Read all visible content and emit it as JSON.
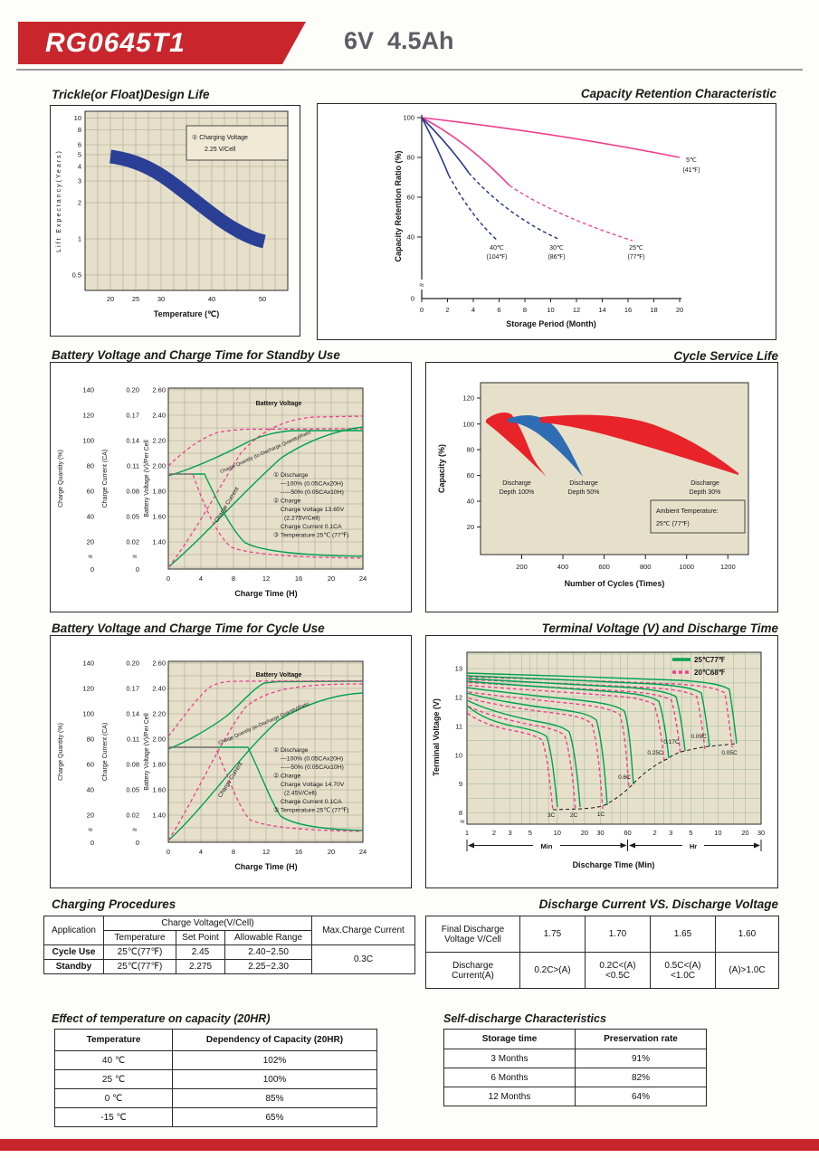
{
  "header": {
    "model": "RG0645T1",
    "spec": "6V  4.5Ah"
  },
  "colors": {
    "brand_red": "#c9252c",
    "chart_green": "#00a150",
    "chart_pink": "#ef3d8f",
    "chart_blue": "#2b3990",
    "plot_beige": "#e6e0cb",
    "region_red": "#e8232a",
    "region_blue": "#2e6db4"
  },
  "charts": {
    "design_life": {
      "title": "Trickle(or Float)Design Life",
      "y_label": "Lift Expectancy(Years)",
      "x_label": "Temperature (℃)",
      "y_ticks": [
        "10",
        "8",
        "6",
        "5",
        "4",
        "3",
        "2",
        "1",
        "0.5"
      ],
      "x_ticks": [
        "20",
        "25",
        "30",
        "40",
        "50"
      ],
      "annotation_line1": "① Charging Voltage",
      "annotation_line2": "2.25 V/Cell"
    },
    "capacity_retention": {
      "title": "Capacity Retention Characteristic",
      "y_label": "Capacity Retention Ratio (%)",
      "x_label": "Storage Period (Month)",
      "y_ticks": [
        "100",
        "80",
        "60",
        "40",
        "0"
      ],
      "x_ticks": [
        "0",
        "2",
        "4",
        "6",
        "8",
        "10",
        "12",
        "14",
        "16",
        "18",
        "20"
      ],
      "lab_40_1": "40℃",
      "lab_40_2": "(104℉)",
      "lab_30_1": "30℃",
      "lab_30_2": "(86℉)",
      "lab_25_1": "25℃",
      "lab_25_2": "(77℉)",
      "lab_5_1": "5℃",
      "lab_5_2": "(41℉)"
    },
    "standby": {
      "title": "Battery Voltage and Charge Time for Standby Use",
      "cq_label": "Charge Quantity (%)",
      "cc_label": "Charge Current (CA)",
      "bv_label": "Battery Voltage (V)/Per Cell",
      "x_label": "Charge Time (H)",
      "cq_ticks": [
        "140",
        "120",
        "100",
        "80",
        "60",
        "40",
        "20"
      ],
      "cc_ticks": [
        "0.20",
        "0.17",
        "0.14",
        "0.11",
        "0.08",
        "0.05",
        "0.02"
      ],
      "bv_ticks": [
        "2.60",
        "2.40",
        "2.20",
        "2.00",
        "1.80",
        "1.60",
        "1.40"
      ],
      "zero": "0",
      "x_ticks": [
        "0",
        "4",
        "8",
        "12",
        "16",
        "20",
        "24"
      ],
      "curve_bv": "Battery Voltage",
      "curve_cq": "Charge Quantity (to-Discharge Quantity)Ratio",
      "curve_cc": "Charge Current",
      "notes": [
        "① Discharge",
        "—100% (0.05CAx20H)",
        "-----50% (0.05CAx10H)",
        "② Charge",
        "Charge Voltage 13.65V",
        "(2.275V/Cell)",
        "Charge Current 0.1CA",
        "③ Temperature 25℃ (77℉)"
      ]
    },
    "cycle_life": {
      "title": "Cycle Service Life",
      "y_label": "Capacity (%)",
      "x_label": "Number of Cycles (Times)",
      "y_ticks": [
        "120",
        "100",
        "80",
        "60",
        "40",
        "20"
      ],
      "x_ticks": [
        "200",
        "400",
        "600",
        "800",
        "1000",
        "1200"
      ],
      "d100_1": "Discharge",
      "d100_2": "Depth 100%",
      "d50_1": "Discharge",
      "d50_2": "Depth 50%",
      "d30_1": "Discharge",
      "d30_2": "Depth 30%",
      "amb_1": "Ambient Temperature:",
      "amb_2": "25℃ (77℉)"
    },
    "cycle_charge": {
      "title": "Battery Voltage and Charge Time for Cycle Use",
      "cq_label": "Charge Quantity (%)",
      "cc_label": "Charge Current (CA)",
      "bv_label": "Battery Voltage (V)/Per Cell",
      "x_label": "Charge Time (H)",
      "cq_ticks": [
        "140",
        "120",
        "100",
        "80",
        "60",
        "40",
        "20"
      ],
      "cc_ticks": [
        "0.20",
        "0.17",
        "0.14",
        "0.11",
        "0.08",
        "0.05",
        "0.02"
      ],
      "bv_ticks": [
        "2.60",
        "2.40",
        "2.20",
        "2.00",
        "1.80",
        "1.60",
        "1.40"
      ],
      "zero": "0",
      "x_ticks": [
        "0",
        "4",
        "8",
        "12",
        "16",
        "20",
        "24"
      ],
      "curve_bv": "Battery Voltage",
      "curve_cq": "Charge Quantity (to-Discharge Quantity)Ratio",
      "curve_cc": "Charge Current",
      "notes": [
        "① Discharge",
        "—100% (0.05CAx20H)",
        "-----50% (0.05CAx10H)",
        "② Charge",
        "Charge Voltage 14.70V",
        "(2.45V/Cell)",
        "Charge Current 0.1CA",
        "③ Temperature 25℃ (77℉)"
      ]
    },
    "terminal": {
      "title": "Terminal Voltage (V) and Discharge Time",
      "y_label": "Terminal Voltage (V)",
      "x_label": "Discharge Time (Min)",
      "y_ticks": [
        "13",
        "12",
        "11",
        "10",
        "9",
        "8"
      ],
      "x_ticks_min": [
        "1",
        "2",
        "3",
        "5",
        "10",
        "20",
        "30",
        "60"
      ],
      "x_ticks_hr": [
        "2",
        "3",
        "5",
        "10",
        "20",
        "30"
      ],
      "min_label": "Min",
      "hr_label": "Hr",
      "legend_25": "25℃77℉",
      "legend_20": "20℃68℉",
      "rate_labels": [
        "3C",
        "2C",
        "1C",
        "0.6C",
        "0.25C",
        "0.17C",
        "0.09C",
        "0.05C"
      ]
    }
  },
  "tables": {
    "charging": {
      "title": "Charging Procedures",
      "application": "Application",
      "charge_voltage": "Charge Voltage(V/Cell)",
      "temperature": "Temperature",
      "set_point": "Set Point",
      "allowable_range": "Allowable Range",
      "max_charge_current": "Max.Charge Current",
      "rows": [
        {
          "app": "Cycle Use",
          "temp": "25℃(77℉)",
          "set": "2.45",
          "range": "2.40~2.50"
        },
        {
          "app": "Standby",
          "temp": "25℃(77℉)",
          "set": "2.275",
          "range": "2.25~2.30"
        }
      ],
      "max_current_value": "0.3C"
    },
    "discharge": {
      "title": "Discharge Current VS. Discharge Voltage",
      "row1_label_a": "Final Discharge",
      "row1_label_b": "Voltage V/Cell",
      "row1_values": [
        "1.75",
        "1.70",
        "1.65",
        "1.60"
      ],
      "row2_label_a": "Discharge",
      "row2_label_b": "Current(A)",
      "row2_values": [
        "0.2C>(A)",
        "0.2C<(A)<0.5C",
        "0.5C<(A)<1.0C",
        "(A)>1.0C"
      ]
    },
    "temp_effect": {
      "title": "Effect of temperature on capacity (20HR)",
      "col1": "Temperature",
      "col2": "Dependency of Capacity (20HR)",
      "rows": [
        [
          "40 ℃",
          "102%"
        ],
        [
          "25 ℃",
          "100%"
        ],
        [
          "0 ℃",
          "85%"
        ],
        [
          "-15 ℃",
          "65%"
        ]
      ]
    },
    "self_discharge": {
      "title": "Self-discharge Characteristics",
      "col1": "Storage time",
      "col2": "Preservation rate",
      "rows": [
        [
          "3 Months",
          "91%"
        ],
        [
          "6 Months",
          "82%"
        ],
        [
          "12 Months",
          "64%"
        ]
      ]
    }
  },
  "chart_data": [
    {
      "type": "line",
      "title": "Trickle(or Float)Design Life",
      "xlabel": "Temperature (℃)",
      "ylabel": "Lift Expectancy(Years)",
      "y_scale": "log",
      "xlim": [
        15,
        55
      ],
      "ylim": [
        0.4,
        11
      ],
      "series": [
        {
          "name": "Charging Voltage 2.25V/Cell",
          "x": [
            20,
            25,
            30,
            35,
            40,
            45,
            50
          ],
          "values": [
            5,
            4.5,
            3.4,
            2.3,
            1.6,
            1.2,
            0.95
          ]
        }
      ]
    },
    {
      "type": "line",
      "title": "Capacity Retention Characteristic",
      "xlabel": "Storage Period (Month)",
      "ylabel": "Capacity Retention Ratio (%)",
      "xlim": [
        0,
        20
      ],
      "ylim": [
        0,
        100
      ],
      "series": [
        {
          "name": "5℃(41℉)",
          "x": [
            0,
            5,
            10,
            15,
            20
          ],
          "values": [
            100,
            95,
            90,
            85,
            80
          ]
        },
        {
          "name": "25℃(77℉)",
          "x": [
            0,
            4,
            8,
            12,
            16
          ],
          "values": [
            100,
            86,
            70,
            57,
            48
          ]
        },
        {
          "name": "30℃(86℉)",
          "x": [
            0,
            3,
            6,
            9,
            10.5
          ],
          "values": [
            100,
            84,
            66,
            52,
            47
          ]
        },
        {
          "name": "40℃(104℉)",
          "x": [
            0,
            2,
            4,
            5.5
          ],
          "values": [
            100,
            80,
            58,
            47
          ]
        }
      ]
    },
    {
      "type": "line",
      "title": "Battery Voltage and Charge Time for Standby Use",
      "xlabel": "Charge Time (H)",
      "note": "Charge 2.275V/Cell (13.65V), 0.1CA, 25℃(77℉)",
      "series": [
        {
          "name": "Battery Voltage 100% discharge (V/cell)",
          "x": [
            0,
            4,
            8,
            12,
            16,
            24
          ],
          "values": [
            1.92,
            2.05,
            2.2,
            2.26,
            2.28,
            2.28
          ]
        },
        {
          "name": "Battery Voltage 50% discharge (V/cell)",
          "x": [
            0,
            2,
            4,
            6,
            24
          ],
          "values": [
            2.0,
            2.15,
            2.26,
            2.29,
            2.3
          ]
        },
        {
          "name": "Charge Quantity 100% (%)",
          "x": [
            0,
            4,
            8,
            12,
            16,
            20,
            24
          ],
          "values": [
            0,
            30,
            62,
            88,
            102,
            107,
            110
          ]
        },
        {
          "name": "Charge Quantity 50% (%)",
          "x": [
            0,
            4,
            8,
            12,
            24
          ],
          "values": [
            0,
            58,
            103,
            116,
            119
          ]
        },
        {
          "name": "Charge Current 100% (CA)",
          "x": [
            0,
            5,
            8,
            12,
            16,
            24
          ],
          "values": [
            0.1,
            0.1,
            0.06,
            0.03,
            0.015,
            0.008
          ]
        },
        {
          "name": "Charge Current 50% (CA)",
          "x": [
            0,
            3,
            5,
            8,
            24
          ],
          "values": [
            0.1,
            0.1,
            0.05,
            0.02,
            0.005
          ]
        }
      ]
    },
    {
      "type": "area",
      "title": "Cycle Service Life",
      "xlabel": "Number of Cycles (Times)",
      "ylabel": "Capacity (%)",
      "xlim": [
        0,
        1300
      ],
      "ylim": [
        0,
        130
      ],
      "note": "Ambient Temperature: 25℃ (77℉)",
      "series": [
        {
          "name": "Discharge Depth 100%",
          "cycles_to_60pct": 300
        },
        {
          "name": "Discharge Depth 50%",
          "cycles_to_60pct": 500
        },
        {
          "name": "Discharge Depth 30%",
          "cycles_to_60pct": 1200
        }
      ]
    },
    {
      "type": "line",
      "title": "Battery Voltage and Charge Time for Cycle Use",
      "xlabel": "Charge Time (H)",
      "note": "Charge 2.45V/Cell (14.70V), 0.1CA, 25℃(77℉)",
      "series": [
        {
          "name": "Battery Voltage 100% discharge (V/cell)",
          "x": [
            0,
            4,
            8,
            12,
            16,
            24
          ],
          "values": [
            1.95,
            2.1,
            2.35,
            2.45,
            2.45,
            2.45
          ]
        },
        {
          "name": "Battery Voltage 50% discharge (V/cell)",
          "x": [
            0,
            2,
            4,
            6,
            24
          ],
          "values": [
            2.02,
            2.25,
            2.42,
            2.45,
            2.45
          ]
        },
        {
          "name": "Charge Quantity 100% (%)",
          "x": [
            0,
            4,
            8,
            12,
            16,
            20,
            24
          ],
          "values": [
            0,
            32,
            66,
            95,
            108,
            113,
            115
          ]
        },
        {
          "name": "Charge Quantity 50% (%)",
          "x": [
            0,
            4,
            8,
            12,
            24
          ],
          "values": [
            0,
            62,
            108,
            118,
            121
          ]
        },
        {
          "name": "Charge Current 100% (CA)",
          "x": [
            0,
            10,
            14,
            18,
            24
          ],
          "values": [
            0.1,
            0.1,
            0.05,
            0.02,
            0.01
          ]
        },
        {
          "name": "Charge Current 50% (CA)",
          "x": [
            0,
            6,
            10,
            14,
            24
          ],
          "values": [
            0.1,
            0.1,
            0.04,
            0.015,
            0.008
          ]
        }
      ]
    },
    {
      "type": "line",
      "title": "Terminal Voltage (V) and Discharge Time",
      "xlabel": "Discharge Time (Min)",
      "ylabel": "Terminal Voltage (V)",
      "x_scale": "log",
      "ylim": [
        8,
        13
      ],
      "temperatures": [
        "25℃77℉ (solid green)",
        "20℃68℉ (dashed pink)"
      ],
      "series": [
        {
          "name": "3C",
          "end_min": 10,
          "end_voltage": 8.2
        },
        {
          "name": "2C",
          "end_min": 18,
          "end_voltage": 8.2
        },
        {
          "name": "1C",
          "end_min": 36,
          "end_voltage": 8.3
        },
        {
          "name": "0.6C",
          "end_min": 70,
          "end_voltage": 9.0
        },
        {
          "name": "0.25C",
          "end_min": 170,
          "end_voltage": 9.9
        },
        {
          "name": "0.17C",
          "end_min": 260,
          "end_voltage": 10.15
        },
        {
          "name": "0.09C",
          "end_min": 480,
          "end_voltage": 10.3
        },
        {
          "name": "0.05C",
          "end_min": 960,
          "end_voltage": 10.4
        }
      ]
    }
  ]
}
